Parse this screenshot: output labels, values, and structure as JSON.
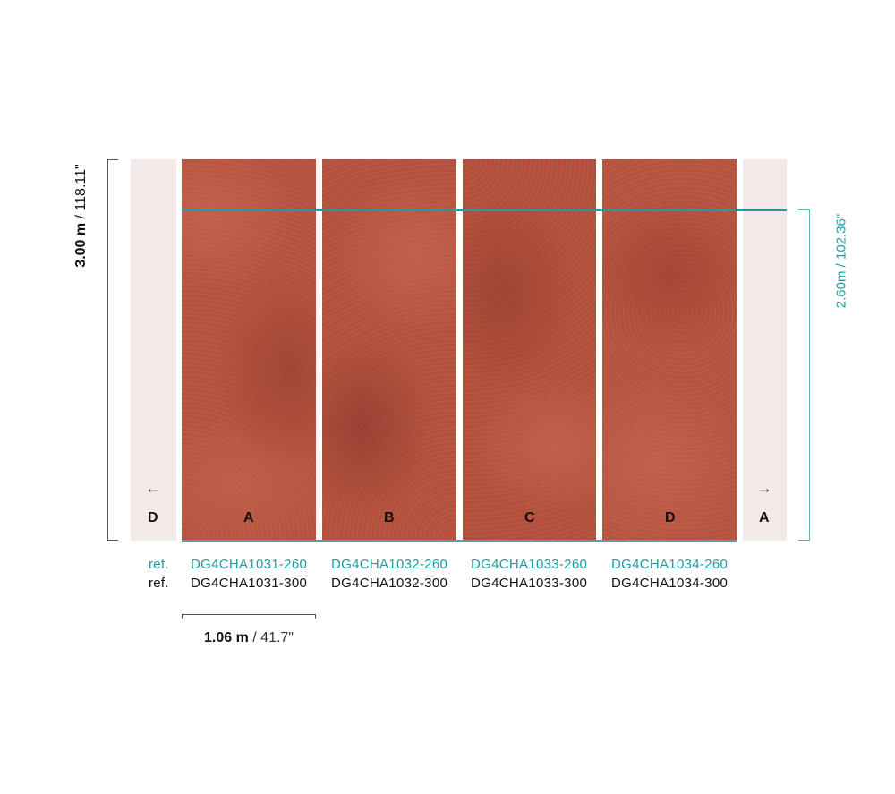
{
  "dimensions": {
    "height_total": {
      "bold": "3.00 m",
      "rest": " / 118.11\""
    },
    "height_print": "2.60m / 102.36\"",
    "width": {
      "bold": "1.06 m",
      "rest": " / 41.7\""
    }
  },
  "panels": [
    {
      "letter": "A",
      "ref_260": "DG4CHA1031-260",
      "ref_300": "DG4CHA1031-300"
    },
    {
      "letter": "B",
      "ref_260": "DG4CHA1032-260",
      "ref_300": "DG4CHA1032-300"
    },
    {
      "letter": "C",
      "ref_260": "DG4CHA1033-260",
      "ref_300": "DG4CHA1033-300"
    },
    {
      "letter": "D",
      "ref_260": "DG4CHA1034-260",
      "ref_300": "DG4CHA1034-300"
    }
  ],
  "ghost_left": {
    "letter": "D",
    "icon": "arrow-left-icon"
  },
  "ghost_right": {
    "letter": "A",
    "icon": "arrow-right-icon"
  },
  "ref_label": "ref.",
  "colors": {
    "accent": "#1a9ea4",
    "panel": "#b5523f",
    "ghost": "#f3e9e8"
  }
}
